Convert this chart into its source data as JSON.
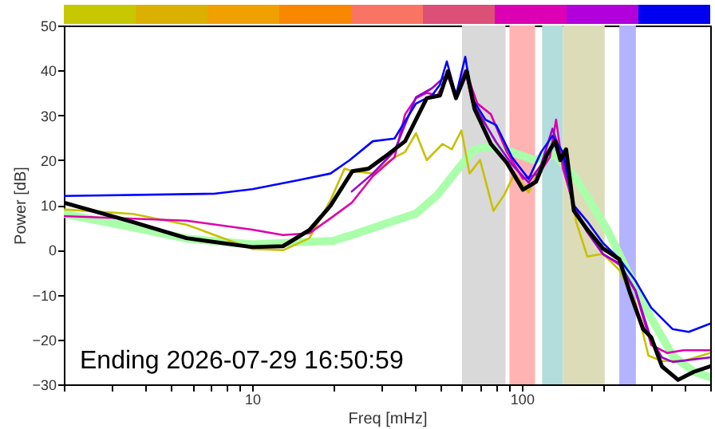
{
  "chart_data": {
    "type": "line",
    "xlabel": "Freq [mHz]",
    "ylabel": "Power [dB]",
    "xlim": [
      2,
      500
    ],
    "ylim": [
      -30,
      50
    ],
    "xticks": [
      {
        "value": 2,
        "label": null
      },
      {
        "value": 3,
        "label": null
      },
      {
        "value": 4,
        "label": null
      },
      {
        "value": 5,
        "label": null
      },
      {
        "value": 6,
        "label": null
      },
      {
        "value": 7,
        "label": null
      },
      {
        "value": 8,
        "label": null
      },
      {
        "value": 9,
        "label": null
      },
      10,
      {
        "value": 20,
        "label": null
      },
      {
        "value": 30,
        "label": null
      },
      {
        "value": 40,
        "label": null
      },
      {
        "value": 50,
        "label": null
      },
      {
        "value": 60,
        "label": null
      },
      {
        "value": 70,
        "label": null
      },
      {
        "value": 80,
        "label": null
      },
      {
        "value": 90,
        "label": null
      },
      100,
      {
        "value": 200,
        "label": null
      },
      {
        "value": 300,
        "label": null
      },
      {
        "value": 400,
        "label": null
      },
      {
        "value": 500,
        "label": null
      }
    ],
    "yticks": [
      -30,
      -20,
      -10,
      0,
      10,
      20,
      30,
      40,
      50
    ],
    "log": "x",
    "grid": false,
    "bands": [
      {
        "axis": "x",
        "from": 60,
        "to": 87,
        "color": "#d9d9d9"
      },
      {
        "axis": "x",
        "from": 90,
        "to": 112,
        "color": "#ffb3b3"
      },
      {
        "axis": "x",
        "from": 119,
        "to": 142,
        "color": "#b3dcdc"
      },
      {
        "axis": "x",
        "from": 142,
        "to": 203,
        "color": "#dcdcb8"
      },
      {
        "axis": "x",
        "from": 230,
        "to": 265,
        "color": "#b3b3ff"
      }
    ],
    "annotations": [
      "Ending 2026-07-29 16:50:59"
    ],
    "series": [
      {
        "color": "#aaffaa",
        "x": [
          2,
          3.6,
          5.7,
          10,
          16.3,
          20,
          23.4,
          30.8,
          40.5,
          48.6,
          58.3,
          66.8,
          76.8,
          92,
          111,
          133,
          159,
          183,
          210,
          251,
          302,
          363,
          435,
          499
        ],
        "values": [
          8,
          5,
          2.5,
          1.2,
          1.8,
          2,
          3.3,
          5.7,
          8.1,
          12.2,
          18.2,
          22.4,
          23,
          21.8,
          20,
          21.2,
          15.8,
          9.9,
          3.9,
          -5.7,
          -15.3,
          -23.6,
          -27.2,
          -28.4
        ]
      },
      {
        "color": "#c8c000",
        "x": [
          2,
          3.6,
          5.7,
          10,
          13,
          16.3,
          19.5,
          22,
          23.4,
          28,
          33.7,
          36.9,
          40.5,
          44.4,
          50.8,
          55,
          59.7,
          64,
          70,
          78.5,
          86,
          94,
          106,
          121,
          133,
          146,
          159,
          175,
          200,
          230,
          264,
          295,
          331,
          398,
          499
        ],
        "values": [
          9,
          8,
          5.6,
          0.2,
          -0.1,
          2.6,
          11,
          18.1,
          17.6,
          17,
          20.6,
          21.8,
          26,
          20,
          23.6,
          22.4,
          26.6,
          17,
          20,
          8.7,
          12.2,
          17,
          12.8,
          20.6,
          24.8,
          20,
          6.3,
          -1.5,
          -0.9,
          -4.5,
          -11.7,
          -23.6,
          -24.8,
          -24.8,
          -23
        ]
      },
      {
        "color": "#dd00aa",
        "x": [
          2,
          5.7,
          10,
          13,
          16.3,
          19.5,
          23.4,
          28,
          33.7,
          36.9,
          40.5,
          44.4,
          48.6,
          53.2,
          57,
          62.5,
          68.4,
          76.8,
          88,
          101,
          116,
          127,
          134,
          142,
          156,
          175,
          200,
          230,
          264,
          302,
          346,
          398,
          499
        ],
        "values": [
          7.5,
          6.5,
          4.5,
          3.3,
          3.7,
          7,
          10.5,
          16.4,
          20.6,
          30.2,
          33.8,
          35,
          34.4,
          38.6,
          34.4,
          39.2,
          32.6,
          30.2,
          21.8,
          15.8,
          17,
          20.6,
          29,
          18.2,
          9.9,
          3.9,
          -0.9,
          -3.3,
          -9.3,
          -21.2,
          -23,
          -22.4,
          -22.4
        ]
      },
      {
        "color": "#9900cc",
        "x": [
          23.4,
          28,
          33.7,
          40.5,
          46.4,
          52.7,
          57,
          61.7,
          65.4,
          73.3,
          80.3,
          92,
          106,
          118,
          130,
          142,
          156,
          175,
          200,
          230,
          264,
          302,
          331,
          363,
          499
        ],
        "values": [
          13,
          17,
          22,
          34,
          36,
          39,
          35,
          40,
          33,
          28,
          24,
          19,
          15,
          19,
          27,
          20,
          9,
          4,
          -1,
          -3,
          -9,
          -20,
          -24,
          -25,
          -24
        ]
      },
      {
        "color": "#0000ff",
        "x": [
          2,
          7.2,
          10,
          14.8,
          19.5,
          23,
          28,
          33.7,
          40.5,
          46.4,
          49.7,
          52.7,
          57,
          61.7,
          65.4,
          73.3,
          80.3,
          92,
          106,
          118,
          130,
          142,
          156,
          175,
          200,
          230,
          264,
          302,
          331,
          363,
          416,
          499
        ],
        "values": [
          12,
          12.5,
          13.5,
          15.5,
          17,
          20,
          24.2,
          24.8,
          32.6,
          34.4,
          36.8,
          42,
          34.4,
          43,
          33.8,
          29,
          27.8,
          20.6,
          15.8,
          21.8,
          25.4,
          21.8,
          9.9,
          6.3,
          1.5,
          -2,
          -6.9,
          -12.9,
          -15.3,
          -17.7,
          -18.3,
          -16.5
        ]
      },
      {
        "color": "#000000",
        "x": [
          2,
          3.6,
          5.7,
          10,
          13,
          16.3,
          19.5,
          23.5,
          27,
          30.8,
          36.9,
          44.4,
          49.7,
          53.2,
          57,
          62.5,
          66.8,
          76.8,
          88,
          101,
          113,
          124,
          133,
          139,
          146,
          156,
          175,
          200,
          230,
          251,
          282,
          302,
          331,
          380,
          435,
          499
        ],
        "values": [
          10.5,
          6.2,
          2.6,
          0.6,
          0.8,
          4.4,
          9.8,
          17.5,
          18.1,
          20.6,
          24.2,
          33.8,
          34.4,
          39.8,
          33.8,
          39.8,
          31.4,
          23.6,
          19.4,
          13.4,
          15.2,
          21.2,
          24.2,
          20,
          22.4,
          8.7,
          4.5,
          0.3,
          -2.1,
          -9.3,
          -17.7,
          -19.5,
          -26,
          -29,
          -27.2,
          -26
        ]
      }
    ]
  }
}
